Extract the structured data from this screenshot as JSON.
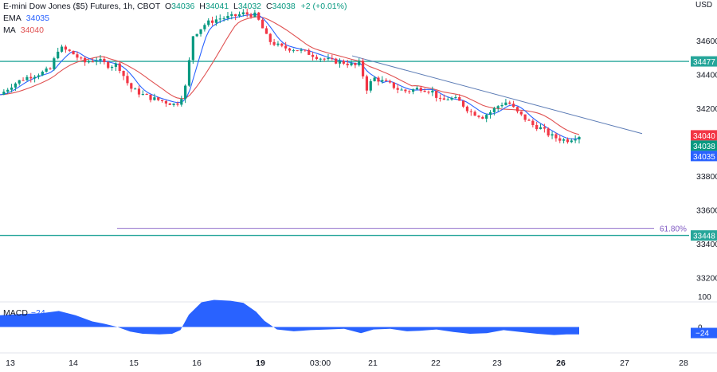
{
  "header": {
    "symbol": "E-mini Dow Jones ($5) Futures, 1h, CBOT",
    "open_label": "O",
    "open": "34036",
    "high_label": "H",
    "high": "34041",
    "low_label": "L",
    "low": "34032",
    "close_label": "C",
    "close": "34038",
    "change": "+2 (+0.01%)"
  },
  "indicators": {
    "ema_label": "EMA",
    "ema_value": "34035",
    "ma_label": "MA",
    "ma_value": "34040"
  },
  "macd": {
    "label": "MACD",
    "value": "−24",
    "badge": "−24"
  },
  "colors": {
    "up": "#089981",
    "down": "#f23645",
    "ema": "#2962ff",
    "ma": "#e05252",
    "level": "#26a69a",
    "trend": "#5b7bb5",
    "fib": "#7e57c2",
    "macd_fill": "#2962ff"
  },
  "chart_data": {
    "type": "line",
    "currency_label": "USD",
    "y_ticks": [
      34600,
      34400,
      34200,
      33800,
      33600,
      33400,
      33200
    ],
    "ylim": [
      33060,
      34840
    ],
    "x_tick_labels": [
      "13",
      "14",
      "15",
      "16",
      "19",
      "03:00",
      "21",
      "22",
      "23",
      "26",
      "27",
      "28"
    ],
    "x_tick_labels_bold": [
      "19",
      "26"
    ],
    "price_markers": [
      {
        "label": "34477",
        "value": 34477,
        "kind": "level"
      },
      {
        "label": "34040",
        "value": 34040,
        "kind": "ma"
      },
      {
        "label": "34038",
        "value": 34038,
        "kind": "last"
      },
      {
        "label": "34035",
        "value": 34035,
        "kind": "ema"
      },
      {
        "label": "33448",
        "value": 33448,
        "kind": "level"
      }
    ],
    "horizontal_levels": [
      34477,
      33448
    ],
    "fib_level": {
      "label": "61.80%",
      "value": 33490
    },
    "trendline": [
      {
        "x": 0.0,
        "y": 34510
      },
      {
        "x": 1.0,
        "y": 34050
      }
    ],
    "price_path": [
      [
        0.0,
        34280
      ],
      [
        0.03,
        34340
      ],
      [
        0.06,
        34380
      ],
      [
        0.1,
        34410
      ],
      [
        0.12,
        34430
      ],
      [
        0.14,
        34560
      ],
      [
        0.17,
        34530
      ],
      [
        0.2,
        34470
      ],
      [
        0.23,
        34490
      ],
      [
        0.26,
        34450
      ],
      [
        0.28,
        34460
      ],
      [
        0.31,
        34320
      ],
      [
        0.34,
        34280
      ],
      [
        0.36,
        34260
      ],
      [
        0.39,
        34240
      ],
      [
        0.42,
        34220
      ],
      [
        0.44,
        34300
      ],
      [
        0.46,
        34630
      ],
      [
        0.49,
        34700
      ],
      [
        0.52,
        34730
      ],
      [
        0.55,
        34740
      ],
      [
        0.58,
        34760
      ],
      [
        0.61,
        34750
      ],
      [
        0.64,
        34600
      ],
      [
        0.67,
        34560
      ],
      [
        0.7,
        34550
      ],
      [
        0.73,
        34530
      ],
      [
        0.76,
        34500
      ],
      [
        0.79,
        34480
      ],
      [
        0.82,
        34470
      ],
      [
        0.85,
        34450
      ],
      [
        0.86,
        34480
      ],
      [
        0.87,
        34300
      ],
      [
        0.89,
        34380
      ],
      [
        0.91,
        34360
      ],
      [
        0.93,
        34340
      ],
      [
        0.95,
        34310
      ],
      [
        0.97,
        34300
      ],
      [
        1.0,
        34320
      ],
      [
        1.03,
        34300
      ],
      [
        1.05,
        34240
      ],
      [
        1.07,
        34260
      ],
      [
        1.09,
        34250
      ],
      [
        1.12,
        34180
      ],
      [
        1.15,
        34150
      ],
      [
        1.17,
        34180
      ],
      [
        1.19,
        34220
      ],
      [
        1.21,
        34240
      ],
      [
        1.23,
        34180
      ],
      [
        1.25,
        34140
      ],
      [
        1.27,
        34100
      ],
      [
        1.29,
        34080
      ],
      [
        1.31,
        34040
      ],
      [
        1.33,
        34020
      ],
      [
        1.35,
        34010
      ],
      [
        1.37,
        34030
      ],
      [
        1.38,
        34038
      ]
    ],
    "macd_values": [
      [
        0.0,
        38
      ],
      [
        0.05,
        42
      ],
      [
        0.1,
        45
      ],
      [
        0.14,
        52
      ],
      [
        0.18,
        38
      ],
      [
        0.22,
        18
      ],
      [
        0.25,
        10
      ],
      [
        0.28,
        0
      ],
      [
        0.31,
        -15
      ],
      [
        0.34,
        -22
      ],
      [
        0.38,
        -24
      ],
      [
        0.41,
        -22
      ],
      [
        0.43,
        -10
      ],
      [
        0.45,
        40
      ],
      [
        0.48,
        80
      ],
      [
        0.51,
        88
      ],
      [
        0.55,
        85
      ],
      [
        0.58,
        78
      ],
      [
        0.61,
        50
      ],
      [
        0.63,
        20
      ],
      [
        0.66,
        -8
      ],
      [
        0.7,
        -14
      ],
      [
        0.74,
        -10
      ],
      [
        0.78,
        -8
      ],
      [
        0.82,
        -6
      ],
      [
        0.86,
        -20
      ],
      [
        0.89,
        -8
      ],
      [
        0.93,
        -6
      ],
      [
        0.97,
        -14
      ],
      [
        1.0,
        -12
      ],
      [
        1.04,
        -8
      ],
      [
        1.08,
        -16
      ],
      [
        1.12,
        -22
      ],
      [
        1.16,
        -20
      ],
      [
        1.2,
        -10
      ],
      [
        1.24,
        -16
      ],
      [
        1.28,
        -22
      ],
      [
        1.32,
        -26
      ],
      [
        1.35,
        -24
      ],
      [
        1.38,
        -24
      ]
    ],
    "macd_ylim": [
      -40,
      115
    ],
    "macd_ticks": [
      100,
      0
    ],
    "grid": false
  }
}
